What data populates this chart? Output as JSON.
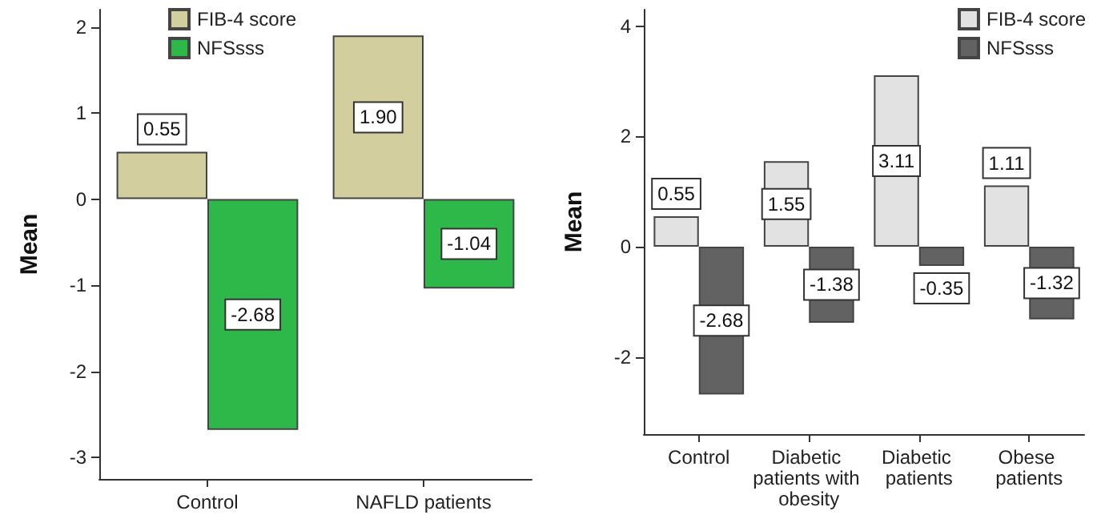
{
  "chart_data": [
    {
      "type": "bar",
      "ylabel": "Mean",
      "categories": [
        "Control",
        "NAFLD patients"
      ],
      "series": [
        {
          "name": "FIB-4 score",
          "color": "#d3ce9e",
          "values": [
            0.55,
            1.9
          ]
        },
        {
          "name": "NFSsss",
          "color": "#2fb84a",
          "values": [
            -2.68,
            -1.04
          ]
        }
      ],
      "ylim": [
        -3.25,
        2.2
      ],
      "yticks": [
        -3,
        -2,
        -1,
        0,
        1,
        2
      ],
      "value_labels": [
        [
          "0.55",
          "1.90"
        ],
        [
          "-2.68",
          "-1.04"
        ]
      ],
      "legend": "top left"
    },
    {
      "type": "bar",
      "ylabel": "Mean",
      "categories": [
        "Control",
        "Diabetic patients with obesity",
        "Diabetic patients",
        "Obese patients"
      ],
      "series": [
        {
          "name": "FIB-4 score",
          "color": "#e2e2e2",
          "values": [
            0.55,
            1.55,
            3.11,
            1.11
          ]
        },
        {
          "name": "NFSsss",
          "color": "#626262",
          "values": [
            -2.68,
            -1.38,
            -0.35,
            -1.32
          ]
        }
      ],
      "ylim": [
        -3.4,
        4.3
      ],
      "yticks": [
        -2,
        0,
        2,
        4
      ],
      "value_labels": [
        [
          "0.55",
          "1.55",
          "3.11",
          "1.11"
        ],
        [
          "-2.68",
          "-1.38",
          "-0.35",
          "-1.32"
        ]
      ],
      "legend": "top right"
    }
  ]
}
